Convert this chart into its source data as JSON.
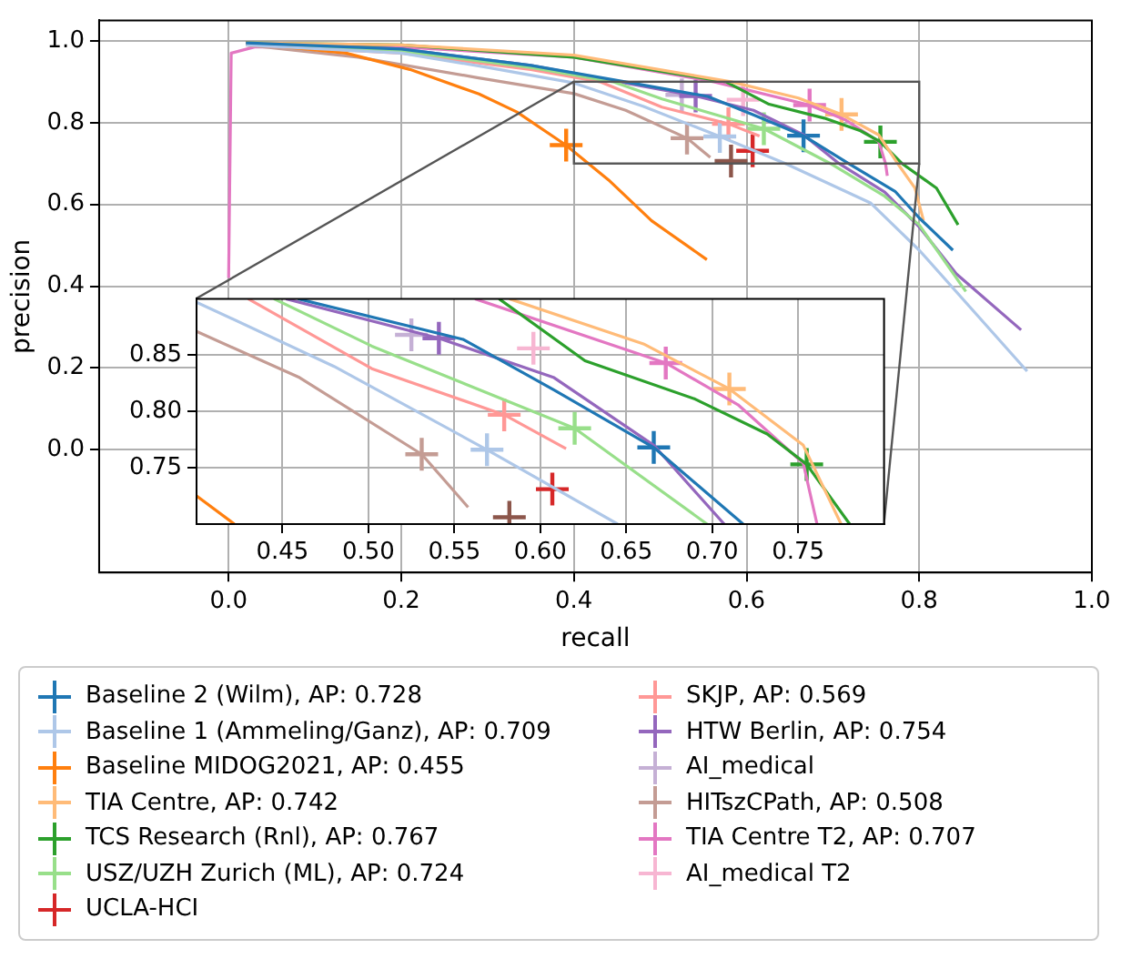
{
  "chart_data": [
    {
      "type": "line",
      "xlabel": "recall",
      "ylabel": "precision",
      "xlim": [
        -0.15,
        1.0
      ],
      "ylim": [
        -0.3,
        1.05
      ],
      "xticks": [
        {
          "value": 0,
          "label": "0.0"
        },
        0.2,
        0.4,
        0.6,
        0.8,
        {
          "value": 1,
          "label": "1.0"
        }
      ],
      "yticks": [
        {
          "value": 0,
          "label": "0.0"
        },
        0.2,
        0.4,
        0.6,
        0.8,
        {
          "value": 1,
          "label": "1.0"
        }
      ],
      "grid": true,
      "legend": "bottom",
      "series": [
        {
          "type": "line",
          "color": "#1f77b4",
          "x": [
            0.02,
            0.2,
            0.35,
            0.459,
            0.555,
            0.608,
            0.666,
            0.718,
            0.772,
            0.8,
            0.839
          ],
          "values": [
            0.995,
            0.98,
            0.94,
            0.9,
            0.864,
            0.819,
            0.768,
            0.7,
            0.632,
            0.567,
            0.488
          ]
        },
        {
          "type": "line",
          "color": "#aec7e8",
          "x": [
            0.02,
            0.2,
            0.3,
            0.4,
            0.48,
            0.569,
            0.645,
            0.744,
            0.8,
            0.925
          ],
          "values": [
            0.99,
            0.97,
            0.935,
            0.897,
            0.84,
            0.766,
            0.7,
            0.603,
            0.488,
            0.192
          ]
        },
        {
          "type": "line",
          "color": "#ff7f0e",
          "x": [
            0.02,
            0.136,
            0.21,
            0.29,
            0.334,
            0.39,
            0.44,
            0.49,
            0.554
          ],
          "values": [
            0.995,
            0.97,
            0.93,
            0.87,
            0.826,
            0.746,
            0.66,
            0.56,
            0.465
          ]
        },
        {
          "type": "line",
          "color": "#ffbb78",
          "x": [
            0.02,
            0.2,
            0.4,
            0.582,
            0.66,
            0.71,
            0.753,
            0.775,
            0.795,
            0.805
          ],
          "values": [
            0.995,
            0.99,
            0.965,
            0.9,
            0.86,
            0.82,
            0.77,
            0.7,
            0.64,
            0.56
          ]
        },
        {
          "type": "line",
          "color": "#2ca02c",
          "x": [
            0.02,
            0.2,
            0.4,
            0.576,
            0.626,
            0.69,
            0.732,
            0.755,
            0.78,
            0.82,
            0.845
          ],
          "values": [
            0.995,
            0.99,
            0.96,
            0.9,
            0.845,
            0.811,
            0.78,
            0.753,
            0.7,
            0.64,
            0.55
          ]
        },
        {
          "type": "line",
          "color": "#98df8a",
          "x": [
            0.02,
            0.2,
            0.35,
            0.445,
            0.502,
            0.62,
            0.697,
            0.76,
            0.8,
            0.854
          ],
          "values": [
            0.995,
            0.975,
            0.935,
            0.9,
            0.858,
            0.785,
            0.7,
            0.62,
            0.55,
            0.387
          ]
        },
        {
          "type": "line",
          "color": "#ff9896",
          "x": [
            0.02,
            0.2,
            0.35,
            0.43,
            0.502,
            0.579,
            0.615
          ],
          "values": [
            0.99,
            0.97,
            0.93,
            0.9,
            0.838,
            0.797,
            0.767
          ]
        },
        {
          "type": "line",
          "color": "#9467bd",
          "x": [
            0.02,
            0.2,
            0.35,
            0.452,
            0.541,
            0.608,
            0.666,
            0.707,
            0.76,
            0.8,
            0.843,
            0.918
          ],
          "values": [
            0.995,
            0.98,
            0.94,
            0.9,
            0.865,
            0.83,
            0.77,
            0.7,
            0.63,
            0.545,
            0.43,
            0.293
          ]
        },
        {
          "type": "line",
          "color": "#c49c94",
          "x": [
            0.02,
            0.15,
            0.288,
            0.4,
            0.46,
            0.531,
            0.558
          ],
          "values": [
            0.99,
            0.96,
            0.91,
            0.871,
            0.83,
            0.762,
            0.715
          ]
        },
        {
          "type": "line",
          "color": "#e377c2",
          "x": [
            0,
            0.003,
            0.03,
            0.2,
            0.4,
            0.562,
            0.673,
            0.715,
            0.753,
            0.761,
            0.763
          ],
          "values": [
            0.42,
            0.97,
            0.985,
            0.985,
            0.96,
            0.9,
            0.843,
            0.806,
            0.754,
            0.7,
            0.67
          ]
        },
        {
          "type": "scatter",
          "marker": "cross",
          "name": "Baseline 2 (Wilm), AP: 0.728",
          "color": "#1f77b4",
          "x": [
            0.666
          ],
          "values": [
            0.768
          ]
        },
        {
          "type": "scatter",
          "marker": "cross",
          "name": "Baseline 1 (Ammeling/Ganz), AP: 0.709",
          "color": "#aec7e8",
          "x": [
            0.569
          ],
          "values": [
            0.766
          ]
        },
        {
          "type": "scatter",
          "marker": "cross",
          "name": "Baseline MIDOG2021, AP: 0.455",
          "color": "#ff7f0e",
          "x": [
            0.391
          ],
          "values": [
            0.745
          ]
        },
        {
          "type": "scatter",
          "marker": "cross",
          "name": "TIA Centre, AP: 0.742",
          "color": "#ffbb78",
          "x": [
            0.71
          ],
          "values": [
            0.82
          ]
        },
        {
          "type": "scatter",
          "marker": "cross",
          "name": "TCS Research (Rnl), AP: 0.767",
          "color": "#2ca02c",
          "x": [
            0.755
          ],
          "values": [
            0.753
          ]
        },
        {
          "type": "scatter",
          "marker": "cross",
          "name": "USZ/UZH Zurich (ML), AP: 0.724",
          "color": "#98df8a",
          "x": [
            0.62
          ],
          "values": [
            0.785
          ]
        },
        {
          "type": "scatter",
          "marker": "cross",
          "name": "UCLA-HCI",
          "color": "#d62728",
          "x": [
            0.607
          ],
          "values": [
            0.731
          ]
        },
        {
          "type": "scatter",
          "marker": "cross",
          "name": "SKJP, AP: 0.569",
          "color": "#ff9896",
          "x": [
            0.579
          ],
          "values": [
            0.797
          ]
        },
        {
          "type": "scatter",
          "marker": "cross",
          "name": "HTW Berlin, AP: 0.754",
          "color": "#9467bd",
          "x": [
            0.541
          ],
          "values": [
            0.865
          ]
        },
        {
          "type": "scatter",
          "marker": "cross",
          "name": "AI_medical",
          "color": "#c5b0d5",
          "x": [
            0.525
          ],
          "values": [
            0.868
          ]
        },
        {
          "type": "scatter",
          "marker": "cross",
          "color": "#8c564b",
          "x": [
            0.582
          ],
          "values": [
            0.706
          ]
        },
        {
          "type": "scatter",
          "marker": "cross",
          "name": "HITszCPath, AP: 0.508",
          "color": "#c49c94",
          "x": [
            0.531
          ],
          "values": [
            0.762
          ]
        },
        {
          "type": "scatter",
          "marker": "cross",
          "name": "TIA Centre T2, AP: 0.707",
          "color": "#e377c2",
          "x": [
            0.673
          ],
          "values": [
            0.843
          ]
        },
        {
          "type": "scatter",
          "marker": "cross",
          "name": "AI_medical T2",
          "color": "#f7b6d2",
          "x": [
            0.596
          ],
          "values": [
            0.856
          ]
        }
      ]
    },
    {
      "type": "line",
      "xlim": [
        0.4,
        0.8
      ],
      "ylim": [
        0.7,
        0.9
      ],
      "xticks": [
        0.45,
        {
          "value": 0.5,
          "label": "0.50"
        },
        0.55,
        {
          "value": 0.6,
          "label": "0.60"
        },
        0.65,
        {
          "value": 0.7,
          "label": "0.70"
        },
        0.75
      ],
      "yticks": [
        0.75,
        {
          "value": 0.8,
          "label": "0.80"
        },
        0.85
      ],
      "grid": true,
      "series": [
        {
          "type": "line",
          "color": "#1f77b4",
          "x": [
            0.459,
            0.555,
            0.608,
            0.666,
            0.718
          ],
          "values": [
            0.9,
            0.864,
            0.819,
            0.768,
            0.7
          ]
        },
        {
          "type": "line",
          "color": "#aec7e8",
          "x": [
            0.4,
            0.48,
            0.569,
            0.645
          ],
          "values": [
            0.897,
            0.84,
            0.766,
            0.7
          ]
        },
        {
          "type": "line",
          "color": "#ff7f0e",
          "x": [
            0.4,
            0.422
          ],
          "values": [
            0.725,
            0.7
          ]
        },
        {
          "type": "line",
          "color": "#ffbb78",
          "x": [
            0.582,
            0.66,
            0.71,
            0.753,
            0.775
          ],
          "values": [
            0.9,
            0.86,
            0.82,
            0.77,
            0.7
          ]
        },
        {
          "type": "line",
          "color": "#2ca02c",
          "x": [
            0.576,
            0.626,
            0.69,
            0.732,
            0.755,
            0.78
          ],
          "values": [
            0.9,
            0.845,
            0.811,
            0.78,
            0.753,
            0.7
          ]
        },
        {
          "type": "line",
          "color": "#98df8a",
          "x": [
            0.445,
            0.502,
            0.62,
            0.697
          ],
          "values": [
            0.9,
            0.858,
            0.785,
            0.7
          ]
        },
        {
          "type": "line",
          "color": "#ff9896",
          "x": [
            0.43,
            0.502,
            0.579,
            0.615
          ],
          "values": [
            0.9,
            0.838,
            0.797,
            0.767
          ]
        },
        {
          "type": "line",
          "color": "#9467bd",
          "x": [
            0.452,
            0.541,
            0.608,
            0.666,
            0.707
          ],
          "values": [
            0.9,
            0.865,
            0.83,
            0.77,
            0.7
          ]
        },
        {
          "type": "line",
          "color": "#c49c94",
          "x": [
            0.4,
            0.46,
            0.531,
            0.558
          ],
          "values": [
            0.871,
            0.83,
            0.762,
            0.715
          ]
        },
        {
          "type": "line",
          "color": "#e377c2",
          "x": [
            0.562,
            0.673,
            0.715,
            0.753,
            0.761
          ],
          "values": [
            0.9,
            0.843,
            0.806,
            0.754,
            0.7
          ]
        },
        {
          "type": "scatter",
          "marker": "cross",
          "color": "#1f77b4",
          "x": [
            0.666
          ],
          "values": [
            0.768
          ]
        },
        {
          "type": "scatter",
          "marker": "cross",
          "color": "#aec7e8",
          "x": [
            0.569
          ],
          "values": [
            0.766
          ]
        },
        {
          "type": "scatter",
          "marker": "cross",
          "color": "#ffbb78",
          "x": [
            0.71
          ],
          "values": [
            0.82
          ]
        },
        {
          "type": "scatter",
          "marker": "cross",
          "color": "#2ca02c",
          "x": [
            0.755
          ],
          "values": [
            0.753
          ]
        },
        {
          "type": "scatter",
          "marker": "cross",
          "color": "#98df8a",
          "x": [
            0.62
          ],
          "values": [
            0.785
          ]
        },
        {
          "type": "scatter",
          "marker": "cross",
          "color": "#d62728",
          "x": [
            0.607
          ],
          "values": [
            0.731
          ]
        },
        {
          "type": "scatter",
          "marker": "cross",
          "color": "#ff9896",
          "x": [
            0.579
          ],
          "values": [
            0.797
          ]
        },
        {
          "type": "scatter",
          "marker": "cross",
          "color": "#9467bd",
          "x": [
            0.541
          ],
          "values": [
            0.865
          ]
        },
        {
          "type": "scatter",
          "marker": "cross",
          "color": "#c5b0d5",
          "x": [
            0.525
          ],
          "values": [
            0.868
          ]
        },
        {
          "type": "scatter",
          "marker": "cross",
          "color": "#8c564b",
          "x": [
            0.582
          ],
          "values": [
            0.706
          ]
        },
        {
          "type": "scatter",
          "marker": "cross",
          "color": "#c49c94",
          "x": [
            0.531
          ],
          "values": [
            0.762
          ]
        },
        {
          "type": "scatter",
          "marker": "cross",
          "color": "#e377c2",
          "x": [
            0.673
          ],
          "values": [
            0.843
          ]
        },
        {
          "type": "scatter",
          "marker": "cross",
          "color": "#f7b6d2",
          "x": [
            0.596
          ],
          "values": [
            0.856
          ]
        }
      ]
    }
  ]
}
